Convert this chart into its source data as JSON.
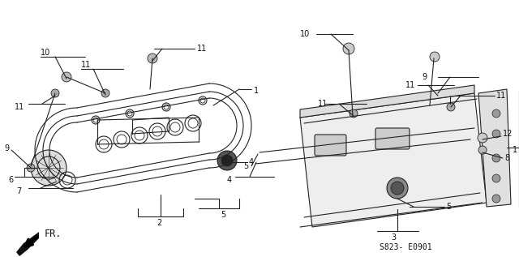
{
  "bg_color": "#ffffff",
  "line_color": "#000000",
  "fig_width": 6.4,
  "fig_height": 3.17,
  "dpi": 100,
  "code_text": "S823- E0901",
  "fr_label": "FR."
}
